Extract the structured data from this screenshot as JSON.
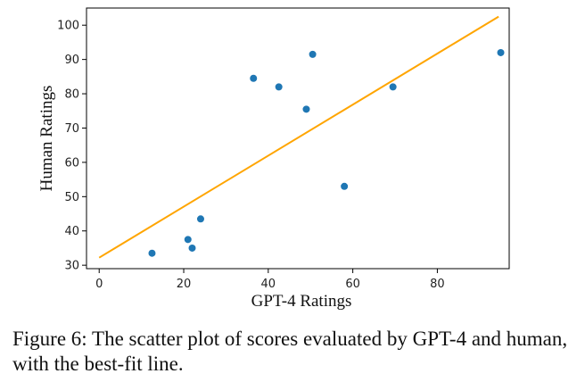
{
  "chart_data": {
    "type": "scatter",
    "title": "",
    "xlabel": "GPT-4 Ratings",
    "ylabel": "Human Ratings",
    "xlim": [
      -3,
      97
    ],
    "ylim": [
      29,
      105
    ],
    "xticks": [
      0,
      20,
      40,
      60,
      80
    ],
    "yticks": [
      30,
      40,
      50,
      60,
      70,
      80,
      90,
      100
    ],
    "grid": false,
    "legend": "none",
    "series": [
      {
        "kind": "points",
        "color": "#1f77b4",
        "points": [
          {
            "x": 12.5,
            "y": 33.5
          },
          {
            "x": 21.0,
            "y": 37.5
          },
          {
            "x": 22.0,
            "y": 35.0
          },
          {
            "x": 24.0,
            "y": 43.5
          },
          {
            "x": 36.5,
            "y": 84.5
          },
          {
            "x": 42.5,
            "y": 82.0
          },
          {
            "x": 49.0,
            "y": 75.5
          },
          {
            "x": 50.5,
            "y": 91.5
          },
          {
            "x": 58.0,
            "y": 53.0
          },
          {
            "x": 69.5,
            "y": 82.0
          },
          {
            "x": 95.0,
            "y": 92.0
          }
        ]
      },
      {
        "kind": "best-fit-line",
        "color": "#ffa500",
        "points": [
          {
            "x": 0,
            "y": 32.2
          },
          {
            "x": 94.5,
            "y": 102.5
          }
        ]
      }
    ]
  },
  "caption": "Figure 6: The scatter plot of scores evaluated by GPT-4 and human, with the best-fit line."
}
